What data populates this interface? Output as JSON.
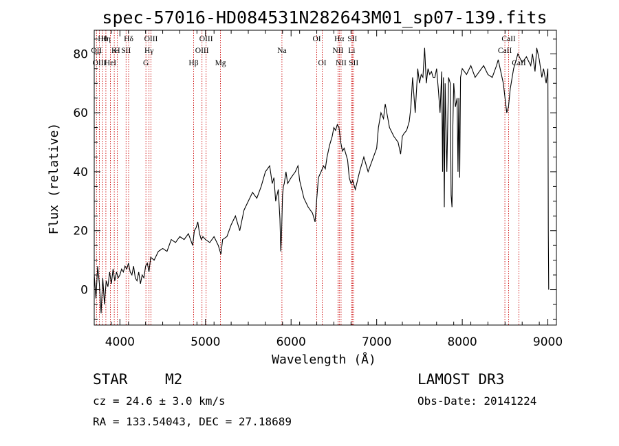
{
  "chart_data": {
    "type": "line",
    "title": "spec-57016-HD084531N282643M01_sp07-139.fits",
    "xlabel": "Wavelength (Å)",
    "ylabel": "Flux (relative)",
    "xlim": [
      3700,
      9100
    ],
    "ylim": [
      -12,
      88
    ],
    "xticks": [
      4000,
      5000,
      6000,
      7000,
      8000,
      9000
    ],
    "yticks": [
      0,
      20,
      40,
      60,
      80
    ],
    "grid": false,
    "line_color": "#000000",
    "marker_color": "#cc0000",
    "series": [
      {
        "name": "flux",
        "x": [
          3700,
          3720,
          3740,
          3760,
          3780,
          3800,
          3820,
          3840,
          3860,
          3880,
          3900,
          3920,
          3940,
          3960,
          3980,
          4000,
          4020,
          4040,
          4060,
          4080,
          4100,
          4120,
          4140,
          4160,
          4180,
          4200,
          4220,
          4240,
          4260,
          4280,
          4300,
          4320,
          4340,
          4360,
          4400,
          4450,
          4500,
          4550,
          4600,
          4650,
          4700,
          4750,
          4800,
          4850,
          4870,
          4890,
          4910,
          4930,
          4950,
          4970,
          5000,
          5050,
          5100,
          5150,
          5180,
          5200,
          5250,
          5300,
          5350,
          5400,
          5450,
          5500,
          5550,
          5600,
          5650,
          5700,
          5750,
          5780,
          5800,
          5820,
          5850,
          5870,
          5880,
          5890,
          5900,
          5910,
          5920,
          5940,
          5960,
          6000,
          6050,
          6080,
          6100,
          6150,
          6200,
          6250,
          6280,
          6300,
          6320,
          6350,
          6380,
          6400,
          6420,
          6450,
          6480,
          6500,
          6520,
          6540,
          6560,
          6580,
          6600,
          6620,
          6640,
          6660,
          6680,
          6700,
          6720,
          6750,
          6800,
          6850,
          6880,
          6900,
          6950,
          7000,
          7020,
          7050,
          7080,
          7100,
          7150,
          7200,
          7250,
          7280,
          7300,
          7320,
          7350,
          7380,
          7400,
          7420,
          7450,
          7480,
          7500,
          7520,
          7540,
          7560,
          7580,
          7600,
          7620,
          7640,
          7660,
          7680,
          7700,
          7720,
          7740,
          7760,
          7770,
          7780,
          7790,
          7800,
          7820,
          7840,
          7860,
          7870,
          7880,
          7890,
          7900,
          7920,
          7940,
          7950,
          7960,
          7970,
          7980,
          8000,
          8050,
          8100,
          8150,
          8200,
          8250,
          8300,
          8350,
          8400,
          8420,
          8450,
          8480,
          8500,
          8520,
          8540,
          8560,
          8600,
          8650,
          8700,
          8750,
          8800,
          8820,
          8850,
          8870,
          8900,
          8930,
          8950,
          8980,
          9000,
          9005,
          9010
        ],
        "y": [
          5,
          -3,
          8,
          2,
          -8,
          4,
          -5,
          3,
          1,
          6,
          2,
          7,
          3,
          6,
          4,
          5,
          7,
          6,
          8,
          7,
          9,
          6,
          5,
          8,
          4,
          3,
          6,
          2,
          5,
          4,
          8,
          9,
          6,
          11,
          10,
          13,
          14,
          13,
          17,
          16,
          18,
          17,
          19,
          15,
          20,
          21,
          23,
          19,
          17,
          18,
          17,
          16,
          18,
          15,
          12,
          17,
          18,
          22,
          25,
          20,
          27,
          30,
          33,
          31,
          35,
          40,
          42,
          36,
          38,
          30,
          34,
          24,
          13,
          20,
          32,
          35,
          36,
          40,
          36,
          38,
          40,
          42,
          37,
          31,
          28,
          26,
          23,
          31,
          38,
          40,
          42,
          41,
          45,
          49,
          52,
          55,
          54,
          56,
          55,
          50,
          47,
          48,
          46,
          44,
          38,
          36,
          37,
          34,
          40,
          45,
          42,
          40,
          44,
          48,
          55,
          60,
          58,
          63,
          55,
          52,
          50,
          46,
          52,
          53,
          54,
          57,
          62,
          72,
          60,
          75,
          70,
          73,
          72,
          82,
          70,
          75,
          73,
          74,
          72,
          72,
          75,
          68,
          60,
          74,
          40,
          72,
          28,
          70,
          40,
          72,
          70,
          32,
          28,
          55,
          70,
          62,
          65,
          40,
          65,
          38,
          72,
          75,
          73,
          76,
          72,
          74,
          76,
          73,
          72,
          76,
          78,
          74,
          70,
          65,
          60,
          62,
          68,
          75,
          80,
          77,
          79,
          76,
          80,
          74,
          82,
          78,
          72,
          75,
          70,
          75,
          20,
          0
        ]
      }
    ],
    "line_markers": [
      {
        "label": "Hθ",
        "wavelength": 3798
      },
      {
        "label": "OII",
        "wavelength": 3727
      },
      {
        "label": "OIII",
        "wavelength": 3760
      },
      {
        "label": "Hη",
        "wavelength": 3836
      },
      {
        "label": "K",
        "wavelength": 3934
      },
      {
        "label": "HeI",
        "wavelength": 3889
      },
      {
        "label": "H",
        "wavelength": 3969
      },
      {
        "label": "SII",
        "wavelength": 4072
      },
      {
        "label": "Hδ",
        "wavelength": 4102
      },
      {
        "label": "OIII",
        "wavelength": 4363
      },
      {
        "label": "Hγ",
        "wavelength": 4340
      },
      {
        "label": "G",
        "wavelength": 4304
      },
      {
        "label": "OIII",
        "wavelength": 5007
      },
      {
        "label": "OIII",
        "wavelength": 4959
      },
      {
        "label": "Hβ",
        "wavelength": 4861
      },
      {
        "label": "Mg",
        "wavelength": 5175
      },
      {
        "label": "Na",
        "wavelength": 5893
      },
      {
        "label": "OI",
        "wavelength": 6300
      },
      {
        "label": "OI",
        "wavelength": 6364
      },
      {
        "label": "Hα",
        "wavelength": 6563
      },
      {
        "label": "NII",
        "wavelength": 6548
      },
      {
        "label": "NII",
        "wavelength": 6584
      },
      {
        "label": "SII",
        "wavelength": 6716
      },
      {
        "label": "Li",
        "wavelength": 6708
      },
      {
        "label": "SII",
        "wavelength": 6731
      },
      {
        "label": "CaII",
        "wavelength": 8542
      },
      {
        "label": "CaII",
        "wavelength": 8498
      },
      {
        "label": "CaII",
        "wavelength": 8662
      }
    ]
  },
  "info": {
    "class_label": "STAR",
    "subclass": "M2",
    "survey": "LAMOST DR3",
    "redshift_text": "cz = 24.6 ± 3.0 km/s",
    "obs_date_text": "Obs-Date: 20141224",
    "coords_text": "RA = 133.54043, DEC =  27.18689"
  }
}
